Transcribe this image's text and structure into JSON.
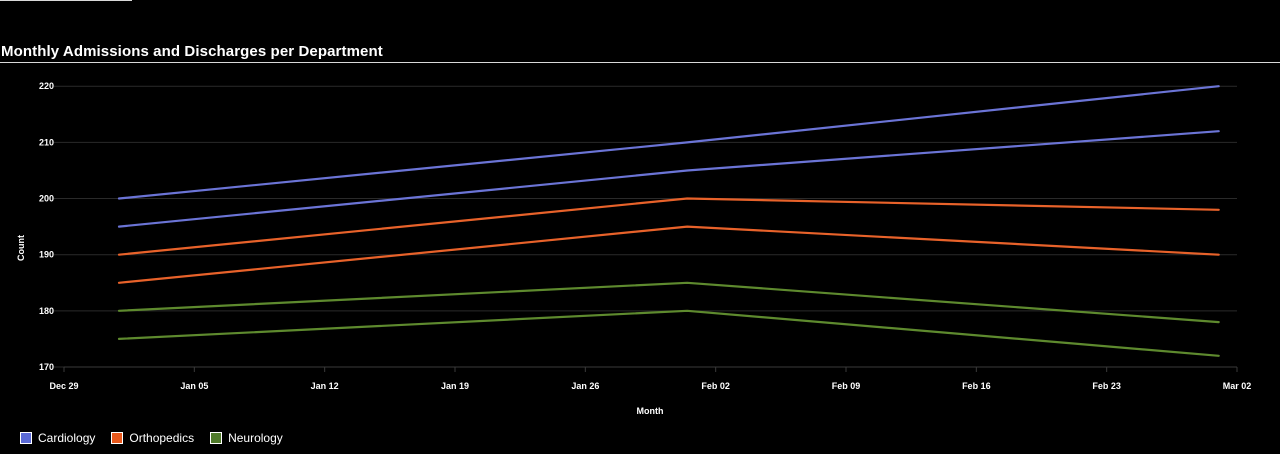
{
  "chart_title": "Monthly Admissions and Discharges per Department",
  "colors": {
    "background": "#000000",
    "grid": "#2a2a2a",
    "text": "#ffffff"
  },
  "chart_data": {
    "type": "line",
    "title": "Monthly Admissions and Discharges per Department",
    "xlabel": "Month",
    "ylabel": "Count",
    "x_axis": {
      "type": "date",
      "range": [
        "2023-12-29",
        "2024-03-02"
      ],
      "tick_labels": [
        "Dec 29",
        "Jan 05",
        "Jan 12",
        "Jan 19",
        "Jan 26",
        "Feb 02",
        "Feb 09",
        "Feb 16",
        "Feb 23",
        "Mar 02"
      ]
    },
    "y_axis": {
      "range": [
        170,
        222
      ],
      "ticks": [
        170,
        180,
        190,
        200,
        210,
        220
      ]
    },
    "grid": true,
    "legend_position": "bottom-left",
    "x": [
      "2024-01-01",
      "2024-02-01",
      "2024-03-01"
    ],
    "series": [
      {
        "legend_name": "Cardiology",
        "measure": "admissions",
        "values": [
          200,
          210,
          220
        ],
        "color": "#6b74d6"
      },
      {
        "legend_name": "Cardiology",
        "measure": "discharges",
        "values": [
          195,
          205,
          212
        ],
        "color": "#6b74d6"
      },
      {
        "legend_name": "Orthopedics",
        "measure": "admissions",
        "values": [
          190,
          200,
          198
        ],
        "color": "#e8622a"
      },
      {
        "legend_name": "Orthopedics",
        "measure": "discharges",
        "values": [
          185,
          195,
          190
        ],
        "color": "#e8622a"
      },
      {
        "legend_name": "Neurology",
        "measure": "admissions",
        "values": [
          180,
          185,
          178
        ],
        "color": "#5e8a2e"
      },
      {
        "legend_name": "Neurology",
        "measure": "discharges",
        "values": [
          175,
          180,
          172
        ],
        "color": "#5e8a2e"
      }
    ],
    "legend": [
      {
        "label": "Cardiology",
        "color": "#5b6ad6"
      },
      {
        "label": "Orthopedics",
        "color": "#e8581c"
      },
      {
        "label": "Neurology",
        "color": "#4f7a2a"
      }
    ]
  }
}
